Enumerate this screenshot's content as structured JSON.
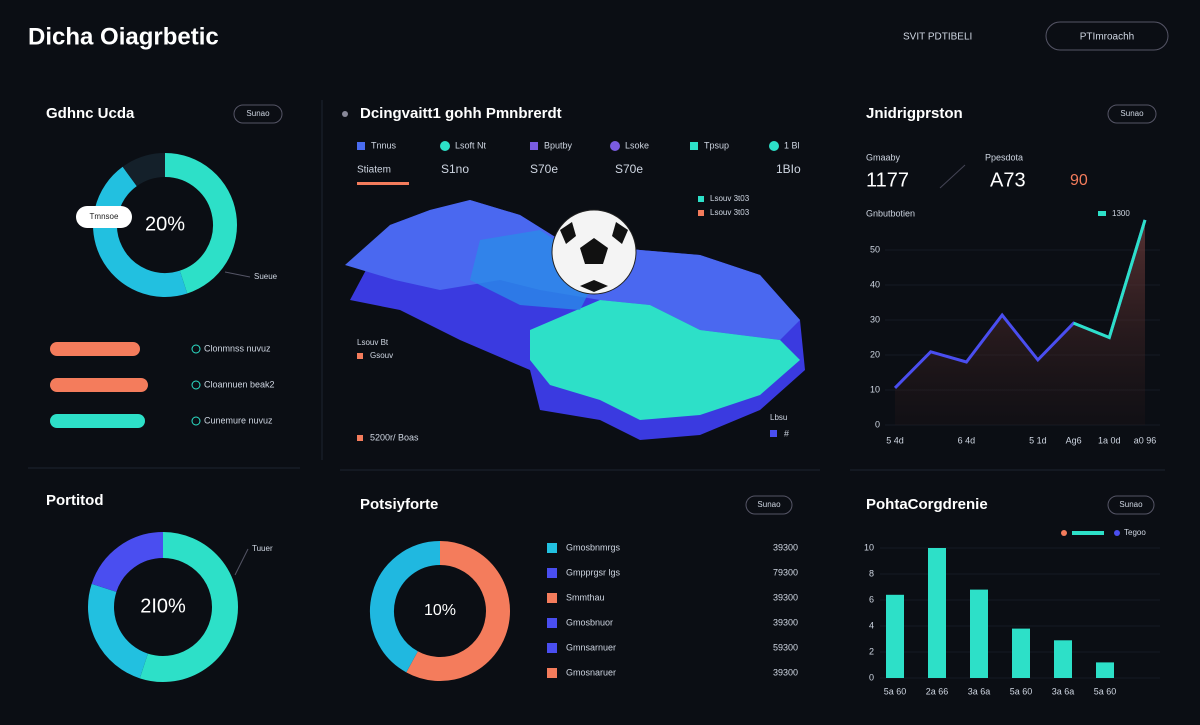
{
  "header": {
    "title": "Dicha Oiagrbetic",
    "nav": "SVIT  PDTIBELI",
    "button": "PTImroachh"
  },
  "summary": {
    "title": "Gdhnc Ucda",
    "badge": "Sunao",
    "center": "20%",
    "tag": "Tmnsoe",
    "note": "Sueue",
    "donut": {
      "values": [
        45,
        45,
        10
      ],
      "colors": [
        "#2de0c8",
        "#22c0e0",
        "#14202a"
      ]
    },
    "bars": {
      "labels": [
        "Clonmnss nuvuz",
        "Cloannuen beak2",
        "Cunemure nuvuz"
      ],
      "values": [
        90,
        98,
        95
      ],
      "colors": [
        "#f47c5c",
        "#f47c5c",
        "#2de0c8"
      ]
    }
  },
  "map": {
    "title": "Dcingvaitt1 gohh Pmnbrerdt",
    "legend": [
      {
        "label": "Tnnus",
        "color": "#4a6cf0"
      },
      {
        "label": "Lsoft Nt",
        "color": "#2de0c8"
      },
      {
        "label": "Bputby",
        "color": "#7a5ce0"
      },
      {
        "label": "Lsoke",
        "color": "#7a5ce0"
      },
      {
        "label": "Tpsup",
        "color": "#2de0c8"
      },
      {
        "label": "1 Bl",
        "color": "#2de0c8"
      }
    ],
    "stat_label": "Stiatem",
    "values": [
      "S1no",
      "S70e",
      "S70e",
      "1BIo"
    ],
    "callouts": [
      "Lsouv 3t03",
      "Lsouv 3t03",
      "Lsouv Bt",
      "Gsouv",
      "5200r/ Boas",
      "Lbsu",
      "#"
    ]
  },
  "trend": {
    "title": "Jnidrigprston",
    "badge": "Sunao",
    "stats": [
      {
        "label": "Gmaaby",
        "value": "1177"
      },
      {
        "label": "Ppesdota",
        "value": "A73"
      },
      {
        "label": "",
        "value": "90"
      }
    ],
    "chart": {
      "type": "line",
      "subtitle": "Gnbutbotien",
      "legend": "1300",
      "color": "#4a4ef0",
      "categories": [
        "5 4d",
        null,
        "6 4d",
        null,
        "5 1d",
        "Ag6",
        "1a 0d",
        "a0 96"
      ],
      "values": [
        10.6,
        20.9,
        18,
        31.4,
        18.6,
        29.1,
        25,
        58.6
      ],
      "ylim": [
        0,
        60
      ],
      "yticks": [
        0,
        10,
        20,
        30,
        40,
        50
      ]
    }
  },
  "portfolio": {
    "title": "Portitod",
    "center": "2I0%",
    "note": "Tuuer",
    "donut": {
      "values": [
        55,
        25,
        20
      ],
      "colors": [
        "#2de0c8",
        "#22c0e0",
        "#4a4ef0"
      ]
    }
  },
  "positions": {
    "title": "Potsiyforte",
    "badge": "Sunao",
    "center": "10%",
    "donut": {
      "values": [
        58,
        42
      ],
      "colors": [
        "#f47c5c",
        "#20b8e0"
      ]
    },
    "rows": [
      {
        "label": "Gmosbnmrgs",
        "value": "39300",
        "color": "#22c0e0"
      },
      {
        "label": "Gmpprgsr lgs",
        "value": "79300",
        "color": "#4a4ef0"
      },
      {
        "label": "Smmthau",
        "value": "39300",
        "color": "#f47c5c"
      },
      {
        "label": "Gmosbnuor",
        "value": "39300",
        "color": "#4a4ef0"
      },
      {
        "label": "Gmnsarnuer",
        "value": "59300",
        "color": "#4a4ef0"
      },
      {
        "label": "Gmosnaruer",
        "value": "39300",
        "color": "#f47c5c"
      }
    ]
  },
  "comparison": {
    "title": "PohtaCorgdrenie",
    "badge": "Sunao",
    "chart": {
      "type": "bar",
      "legend": "Tegoo",
      "color": "#2de0c8",
      "categories": [
        "5a 60",
        "2a 66",
        "3a 6a",
        "5a 60",
        "3a 6a",
        "5a 60"
      ],
      "values": [
        6.4,
        10,
        6.8,
        3.8,
        2.9,
        1.2
      ],
      "ylim": [
        0,
        10
      ],
      "yticks": [
        0,
        2,
        4,
        6,
        8,
        10
      ]
    }
  }
}
